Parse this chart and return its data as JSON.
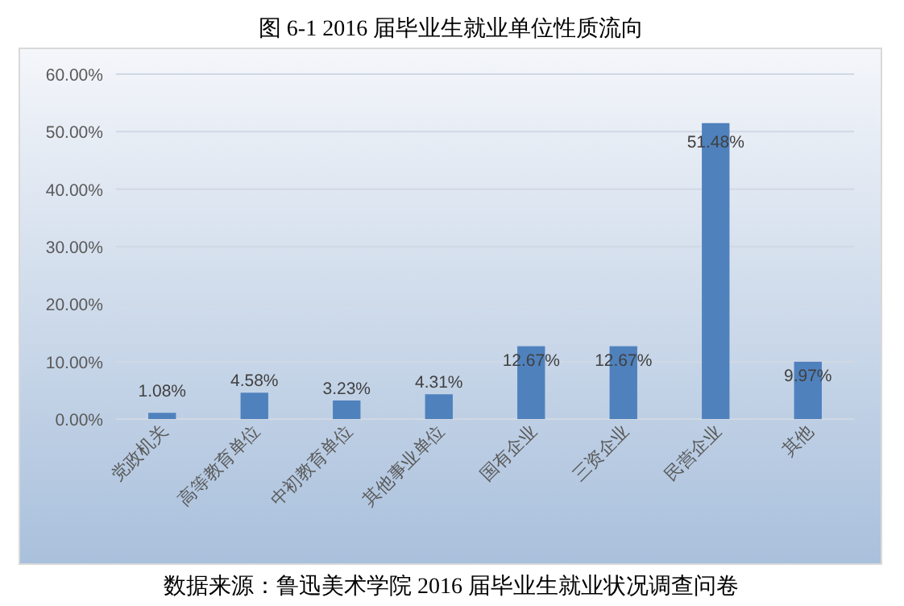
{
  "chart_data": {
    "type": "bar",
    "title": "图 6-1   2016 届毕业生就业单位性质流向",
    "categories": [
      "党政机关",
      "高等教育单位",
      "中初教育单位",
      "其他事业单位",
      "国有企业",
      "三资企业",
      "民营企业",
      "其他"
    ],
    "values": [
      1.08,
      4.58,
      3.23,
      4.31,
      12.67,
      12.67,
      51.48,
      9.97
    ],
    "value_labels": [
      "1.08%",
      "4.58%",
      "3.23%",
      "4.31%",
      "12.67%",
      "12.67%",
      "51.48%",
      "9.97%"
    ],
    "color": "#4f81bd",
    "ylim": [
      0,
      60
    ],
    "yticks": [
      {
        "value": 0,
        "label": "0.00%"
      },
      {
        "value": 10,
        "label": "10.00%"
      },
      {
        "value": 20,
        "label": "20.00%"
      },
      {
        "value": 30,
        "label": "30.00%"
      },
      {
        "value": 40,
        "label": "40.00%"
      },
      {
        "value": 50,
        "label": "50.00%"
      },
      {
        "value": 60,
        "label": "60.00%"
      }
    ],
    "grid": "y",
    "annotations": [
      "数据来源：鲁迅美术学院 2016 届毕业生就业状况调查问卷"
    ]
  }
}
